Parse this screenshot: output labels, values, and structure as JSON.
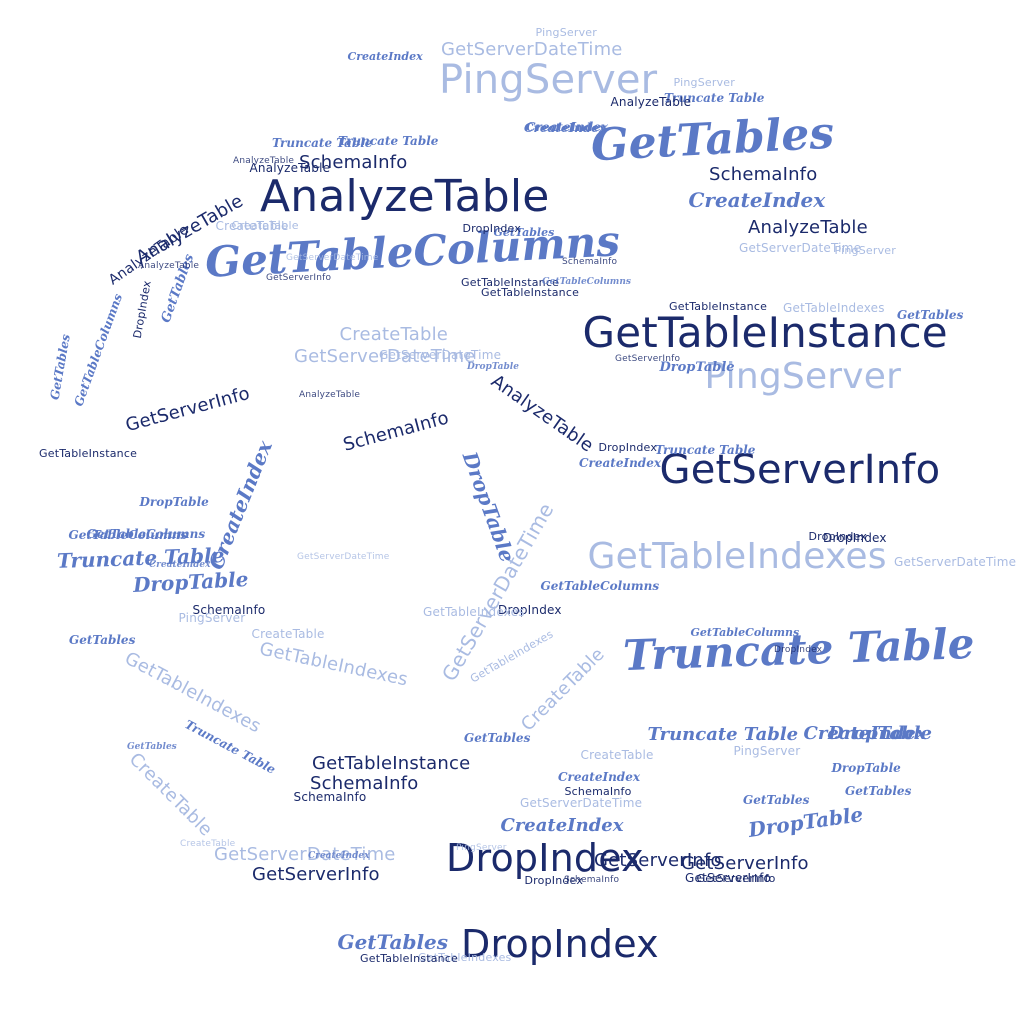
{
  "colors": {
    "navy": "#1b2a6b",
    "mid": "#5b79c6",
    "light": "#a9bbe2",
    "background": "#ffffff"
  },
  "cloud": {
    "words": [
      {
        "text": "GetTableColumns",
        "style": "script",
        "tone": "mid"
      },
      {
        "text": "AnalyzeTable",
        "style": "sans",
        "tone": "navy"
      },
      {
        "text": "PingServer",
        "style": "sans",
        "tone": "light"
      },
      {
        "text": "GetTables",
        "style": "script",
        "tone": "mid"
      },
      {
        "text": "GetTableInstance",
        "style": "sans",
        "tone": "navy"
      },
      {
        "text": "PingServer",
        "style": "sans",
        "tone": "light"
      },
      {
        "text": "GetServerInfo",
        "style": "sans",
        "tone": "navy"
      },
      {
        "text": "GetTableIndexes",
        "style": "sans",
        "tone": "light"
      },
      {
        "text": "Truncate Table",
        "style": "script",
        "tone": "mid"
      },
      {
        "text": "DropIndex",
        "style": "sans",
        "tone": "navy"
      },
      {
        "text": "DropIndex",
        "style": "sans",
        "tone": "navy"
      },
      {
        "text": "GetServerDateTime",
        "style": "sans",
        "tone": "light"
      },
      {
        "text": "SchemaInfo",
        "style": "sans",
        "tone": "navy"
      },
      {
        "text": "SchemaInfo",
        "style": "sans",
        "tone": "navy"
      },
      {
        "text": "CreateIndex",
        "style": "script",
        "tone": "mid"
      },
      {
        "text": "AnalyzeTable",
        "style": "sans",
        "tone": "navy"
      },
      {
        "text": "GetServerDateTime",
        "style": "sans",
        "tone": "light"
      },
      {
        "text": "CreateTable",
        "style": "sans",
        "tone": "light"
      },
      {
        "text": "GetServerDateTime",
        "style": "sans",
        "tone": "light"
      },
      {
        "text": "AnalyzeTable",
        "style": "sans",
        "tone": "navy"
      },
      {
        "text": "GetServerInfo",
        "style": "sans",
        "tone": "navy"
      },
      {
        "text": "SchemaInfo",
        "style": "sans",
        "tone": "navy"
      },
      {
        "text": "AnalyzeTable",
        "style": "sans",
        "tone": "navy"
      },
      {
        "text": "GetServerInfo",
        "style": "sans",
        "tone": "navy"
      },
      {
        "text": "CreateIndex",
        "style": "script",
        "tone": "mid"
      },
      {
        "text": "DropTable",
        "style": "script",
        "tone": "mid"
      },
      {
        "text": "GetServerDateTime",
        "style": "sans",
        "tone": "light"
      },
      {
        "text": "CreateTable",
        "style": "sans",
        "tone": "light"
      },
      {
        "text": "GetTableIndexes",
        "style": "sans",
        "tone": "light"
      },
      {
        "text": "GetTableIndexes",
        "style": "sans",
        "tone": "light"
      },
      {
        "text": "CreateTable",
        "style": "sans",
        "tone": "light"
      },
      {
        "text": "CreateTable",
        "style": "sans",
        "tone": "light"
      },
      {
        "text": "GetTableInstance",
        "style": "sans",
        "tone": "navy"
      },
      {
        "text": "SchemaInfo",
        "style": "sans",
        "tone": "navy"
      },
      {
        "text": "GetServerInfo",
        "style": "sans",
        "tone": "navy"
      },
      {
        "text": "CreateIndex",
        "style": "script",
        "tone": "mid"
      },
      {
        "text": "Truncate Table",
        "style": "script",
        "tone": "mid"
      },
      {
        "text": "Truncate Table",
        "style": "script",
        "tone": "mid"
      },
      {
        "text": "DropTable",
        "style": "script",
        "tone": "mid"
      },
      {
        "text": "DropTable",
        "style": "script",
        "tone": "mid"
      },
      {
        "text": "GetTables",
        "style": "script",
        "tone": "mid"
      },
      {
        "text": "DropTable",
        "style": "script",
        "tone": "mid"
      },
      {
        "text": "CreateIndex",
        "style": "script",
        "tone": "mid"
      },
      {
        "text": "AnalyzeTable",
        "style": "sans",
        "tone": "navy"
      },
      {
        "text": "GetServerDateTime",
        "style": "sans",
        "tone": "light"
      },
      {
        "text": "PingServer",
        "style": "sans",
        "tone": "light"
      },
      {
        "text": "SchemaInfo",
        "style": "sans",
        "tone": "navy"
      },
      {
        "text": "GetServerInfo",
        "style": "sans",
        "tone": "navy"
      },
      {
        "text": "SchemaInfo",
        "style": "sans",
        "tone": "navy"
      },
      {
        "text": "DropTable",
        "style": "script",
        "tone": "mid"
      },
      {
        "text": "GetTableColumns",
        "style": "script",
        "tone": "mid"
      },
      {
        "text": "Truncate Table",
        "style": "script",
        "tone": "mid"
      },
      {
        "text": "GetTables",
        "style": "script",
        "tone": "mid"
      },
      {
        "text": "GetTableColumns",
        "style": "script",
        "tone": "mid"
      },
      {
        "text": "GetServerDateTime",
        "style": "sans",
        "tone": "light"
      },
      {
        "text": "CreateIndex",
        "style": "script",
        "tone": "mid"
      },
      {
        "text": "CreateIndex",
        "style": "script",
        "tone": "mid"
      },
      {
        "text": "PingServer",
        "style": "sans",
        "tone": "light"
      },
      {
        "text": "PingServer",
        "style": "sans",
        "tone": "light"
      },
      {
        "text": "PingServer",
        "style": "sans",
        "tone": "light"
      },
      {
        "text": "DropIndex",
        "style": "sans",
        "tone": "navy"
      },
      {
        "text": "DropIndex",
        "style": "sans",
        "tone": "navy"
      },
      {
        "text": "GetTableInstance",
        "style": "sans",
        "tone": "navy"
      },
      {
        "text": "GetTableInstance",
        "style": "sans",
        "tone": "navy"
      },
      {
        "text": "GetTableInstance",
        "style": "sans",
        "tone": "navy"
      },
      {
        "text": "GetTableInstance",
        "style": "sans",
        "tone": "navy"
      },
      {
        "text": "GetTables",
        "style": "script",
        "tone": "mid"
      },
      {
        "text": "GetTables",
        "style": "script",
        "tone": "mid"
      },
      {
        "text": "GetTables",
        "style": "script",
        "tone": "mid"
      },
      {
        "text": "GetTables",
        "style": "script",
        "tone": "mid"
      },
      {
        "text": "GetTables",
        "style": "script",
        "tone": "mid"
      },
      {
        "text": "GetTables",
        "style": "script",
        "tone": "mid"
      },
      {
        "text": "GetTables",
        "style": "script",
        "tone": "mid"
      },
      {
        "text": "GetTableColumns",
        "style": "script",
        "tone": "mid"
      },
      {
        "text": "GetTableColumns",
        "style": "script",
        "tone": "mid"
      },
      {
        "text": "GetTableColumns",
        "style": "script",
        "tone": "mid"
      },
      {
        "text": "GetTableColumns",
        "style": "script",
        "tone": "mid"
      },
      {
        "text": "GetTableIndexes",
        "style": "sans",
        "tone": "light"
      },
      {
        "text": "GetTableIndexes",
        "style": "sans",
        "tone": "light"
      },
      {
        "text": "GetTableIndexes",
        "style": "sans",
        "tone": "light"
      },
      {
        "text": "GetServerInfo",
        "style": "sans",
        "tone": "navy"
      },
      {
        "text": "GetServerInfo",
        "style": "sans",
        "tone": "navy"
      },
      {
        "text": "GetServerInfo",
        "style": "sans",
        "tone": "navy"
      },
      {
        "text": "SchemaInfo",
        "style": "sans",
        "tone": "navy"
      },
      {
        "text": "SchemaInfo",
        "style": "sans",
        "tone": "navy"
      },
      {
        "text": "DropIndex",
        "style": "sans",
        "tone": "navy"
      },
      {
        "text": "DropIndex",
        "style": "sans",
        "tone": "navy"
      },
      {
        "text": "DropIndex",
        "style": "sans",
        "tone": "navy"
      },
      {
        "text": "DropIndex",
        "style": "sans",
        "tone": "navy"
      },
      {
        "text": "DropIndex",
        "style": "sans",
        "tone": "navy"
      },
      {
        "text": "CreateTable",
        "style": "sans",
        "tone": "light"
      },
      {
        "text": "CreateTable",
        "style": "sans",
        "tone": "light"
      },
      {
        "text": "CreateTable",
        "style": "sans",
        "tone": "light"
      },
      {
        "text": "CreateIndex",
        "style": "script",
        "tone": "mid"
      },
      {
        "text": "CreateIndex",
        "style": "script",
        "tone": "mid"
      },
      {
        "text": "CreateIndex",
        "style": "script",
        "tone": "mid"
      },
      {
        "text": "CreateIndex",
        "style": "script",
        "tone": "mid"
      },
      {
        "text": "CreateIndex",
        "style": "script",
        "tone": "mid"
      },
      {
        "text": "DropTable",
        "style": "script",
        "tone": "mid"
      },
      {
        "text": "DropTable",
        "style": "script",
        "tone": "mid"
      },
      {
        "text": "DropTable",
        "style": "script",
        "tone": "mid"
      },
      {
        "text": "Truncate Table",
        "style": "script",
        "tone": "mid"
      },
      {
        "text": "Truncate Table",
        "style": "script",
        "tone": "mid"
      },
      {
        "text": "Truncate Table",
        "style": "script",
        "tone": "mid"
      },
      {
        "text": "Truncate Table",
        "style": "script",
        "tone": "mid"
      },
      {
        "text": "AnalyzeTable",
        "style": "sans",
        "tone": "navy"
      },
      {
        "text": "AnalyzeTable",
        "style": "sans",
        "tone": "navy"
      },
      {
        "text": "AnalyzeTable",
        "style": "sans",
        "tone": "navy"
      },
      {
        "text": "AnalyzeTable",
        "style": "sans",
        "tone": "navy"
      },
      {
        "text": "GetServerDateTime",
        "style": "sans",
        "tone": "light"
      },
      {
        "text": "GetServerDateTime",
        "style": "sans",
        "tone": "light"
      },
      {
        "text": "GetServerDateTime",
        "style": "sans",
        "tone": "light"
      },
      {
        "text": "PingServer",
        "style": "sans",
        "tone": "light"
      },
      {
        "text": "PingServer",
        "style": "sans",
        "tone": "light"
      },
      {
        "text": "SchemaInfo",
        "style": "sans",
        "tone": "navy"
      },
      {
        "text": "GetServerInfo",
        "style": "sans",
        "tone": "navy"
      },
      {
        "text": "GetTableInstance",
        "style": "sans",
        "tone": "navy"
      },
      {
        "text": "GetTableIndexes",
        "style": "sans",
        "tone": "light"
      },
      {
        "text": "DropIndex",
        "style": "sans",
        "tone": "navy"
      },
      {
        "text": "GetTables",
        "style": "script",
        "tone": "mid"
      },
      {
        "text": "CreateTable",
        "style": "sans",
        "tone": "light"
      },
      {
        "text": "AnalyzeTable",
        "style": "sans",
        "tone": "navy"
      },
      {
        "text": "GetServerDateTime",
        "style": "sans",
        "tone": "light"
      }
    ]
  }
}
